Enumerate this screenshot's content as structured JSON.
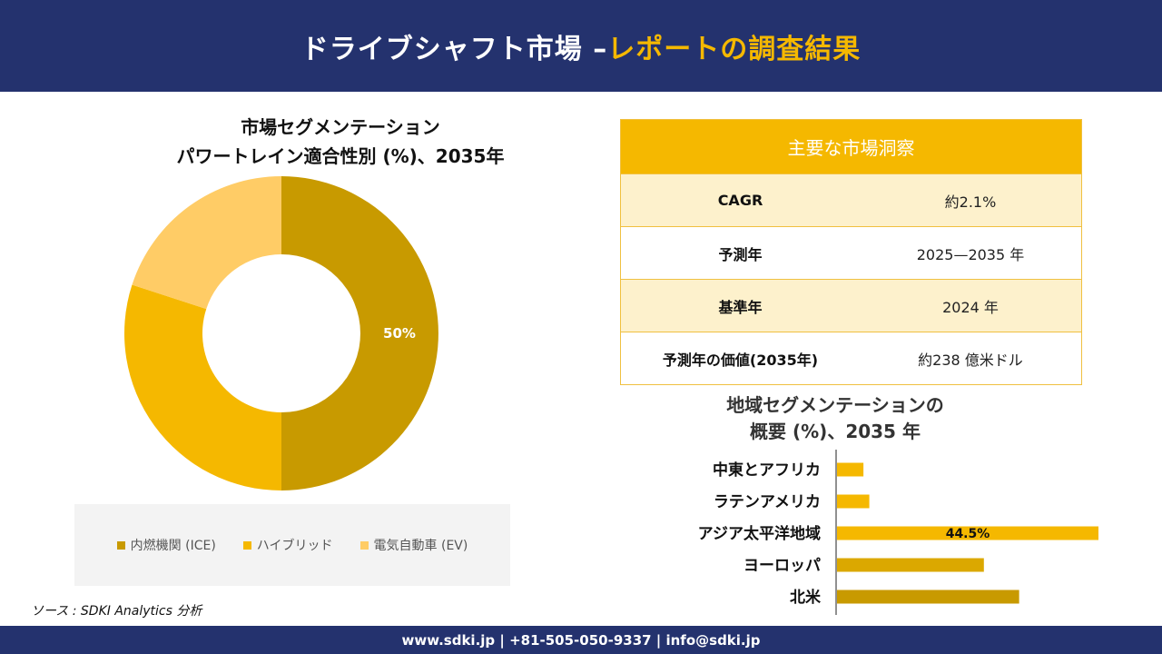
{
  "header": {
    "title_main": "ドライブシャフト市場 –",
    "title_accent": "レポートの調査結果"
  },
  "donut": {
    "title_line1": "市場セグメンテーション",
    "title_line2": "パワートレイン適合性別 (%)、2035年"
  },
  "insights": {
    "heading": "主要な市場洞察",
    "rows": [
      {
        "key": "CAGR",
        "value": "約2.1%"
      },
      {
        "key": "予測年",
        "value": "2025—2035 年"
      },
      {
        "key": "基準年",
        "value": "2024 年"
      },
      {
        "key": "予測年の価値(2035年)",
        "value": "約238 億米ドル"
      }
    ]
  },
  "region": {
    "title_line1": "地域セグメンテーションの",
    "title_line2": "概要 (%)、2035 年"
  },
  "source": "ソース : SDKI Analytics 分析",
  "footer": "www.sdki.jp | +81-505-050-9337 | info@sdki.jp",
  "colors": {
    "navy": "#24326e",
    "accent": "#f5b800"
  },
  "chart_data": [
    {
      "type": "pie",
      "categories": [
        "内燃機関 (ICE)",
        "ハイブリッド",
        "電気自動車 (EV)"
      ],
      "values": [
        50,
        30,
        20
      ],
      "colors": [
        "#c89a00",
        "#f5b800",
        "#ffcc66"
      ],
      "data_labels": [
        "50%",
        "",
        ""
      ],
      "legend": "bottom"
    },
    {
      "type": "bar",
      "orientation": "horizontal",
      "categories": [
        "中東とアフリカ",
        "ラテンアメリカ",
        "アジア太平洋地域",
        "ヨーロッパ",
        "北米"
      ],
      "values": [
        4.5,
        5.5,
        44.5,
        25,
        31
      ],
      "colors": [
        "#f5b800",
        "#f5b800",
        "#f5b800",
        "#dba800",
        "#c89a00"
      ],
      "data_labels": [
        "",
        "",
        "44.5%",
        "",
        ""
      ]
    }
  ]
}
